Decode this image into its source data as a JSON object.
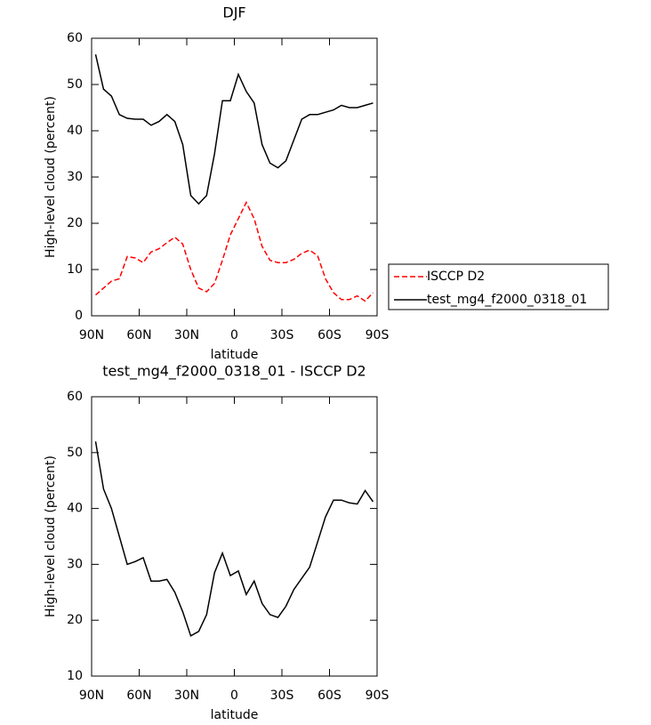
{
  "chart_data": [
    {
      "type": "line",
      "title": "DJF",
      "xlabel": "latitude",
      "ylabel": "High-level cloud (percent)",
      "x": [
        87.5,
        82.5,
        77.5,
        72.5,
        67.5,
        62.5,
        57.5,
        52.5,
        47.5,
        42.5,
        37.5,
        32.5,
        27.5,
        22.5,
        17.5,
        12.5,
        7.5,
        2.5,
        -2.5,
        -7.5,
        -12.5,
        -17.5,
        -22.5,
        -27.5,
        -32.5,
        -37.5,
        -42.5,
        -47.5,
        -52.5,
        -57.5,
        -62.5,
        -67.5,
        -72.5,
        -77.5,
        -82.5,
        -87.5
      ],
      "series": [
        {
          "name": "ISCCP D2",
          "color": "#ff0000",
          "line_style": "dashed",
          "values": [
            4.5,
            6,
            7.5,
            8,
            12.8,
            12.5,
            11.5,
            13.8,
            14.5,
            15.8,
            17,
            15.5,
            10,
            6,
            5.2,
            7,
            12,
            17.5,
            21,
            24.5,
            21,
            15,
            12,
            11.5,
            11.5,
            12.2,
            13.5,
            14.2,
            13,
            8,
            5,
            3.5,
            3.5,
            4.3,
            3.2,
            5
          ]
        },
        {
          "name": "test_mg4_f2000_0318_01",
          "color": "#000000",
          "line_style": "solid",
          "values": [
            56.5,
            49,
            47.5,
            43.5,
            42.7,
            42.5,
            42.5,
            41.2,
            42,
            43.5,
            42,
            37,
            26,
            24.2,
            26,
            35,
            46.5,
            46.5,
            52.2,
            48.5,
            46,
            37,
            33,
            32,
            33.5,
            38,
            42.5,
            43.5,
            43.5,
            44,
            44.5,
            45.5,
            45,
            45,
            45.5,
            46
          ]
        }
      ],
      "xlim": [
        90,
        -90
      ],
      "xticks": [
        {
          "value": 90,
          "label": "90N"
        },
        {
          "value": 60,
          "label": "60N"
        },
        {
          "value": 30,
          "label": "30N"
        },
        0,
        {
          "value": -30,
          "label": "30S"
        },
        {
          "value": -60,
          "label": "60S"
        },
        {
          "value": -90,
          "label": "90S"
        }
      ],
      "ylim": [
        0,
        60
      ],
      "yticks": [
        0,
        10,
        20,
        30,
        40,
        50,
        60
      ],
      "grid": false,
      "legend": "right"
    },
    {
      "type": "line",
      "title": "test_mg4_f2000_0318_01 - ISCCP D2",
      "xlabel": "latitude",
      "ylabel": "High-level cloud (percent)",
      "x": [
        87.5,
        82.5,
        77.5,
        72.5,
        67.5,
        62.5,
        57.5,
        52.5,
        47.5,
        42.5,
        37.5,
        32.5,
        27.5,
        22.5,
        17.5,
        12.5,
        7.5,
        2.5,
        -2.5,
        -7.5,
        -12.5,
        -17.5,
        -22.5,
        -27.5,
        -32.5,
        -37.5,
        -42.5,
        -47.5,
        -52.5,
        -57.5,
        -62.5,
        -67.5,
        -72.5,
        -77.5,
        -82.5,
        -87.5
      ],
      "series": [
        {
          "color": "#000000",
          "line_style": "solid",
          "values": [
            52,
            43.5,
            40,
            35,
            30,
            30.5,
            31.2,
            27,
            27,
            27.3,
            25,
            21.5,
            17.2,
            18,
            21,
            28.5,
            32,
            28,
            28.8,
            24.6,
            27,
            23,
            21,
            20.5,
            22.5,
            25.5,
            27.5,
            29.5,
            34,
            38.5,
            41.5,
            41.5,
            41,
            40.8,
            43.2,
            41.2
          ]
        }
      ],
      "xlim": [
        90,
        -90
      ],
      "xticks": [
        {
          "value": 90,
          "label": "90N"
        },
        {
          "value": 60,
          "label": "60N"
        },
        {
          "value": 30,
          "label": "30N"
        },
        0,
        {
          "value": -30,
          "label": "30S"
        },
        {
          "value": -60,
          "label": "60S"
        },
        {
          "value": -90,
          "label": "90S"
        }
      ],
      "ylim": [
        10,
        60
      ],
      "yticks": [
        10,
        20,
        30,
        40,
        50,
        60
      ],
      "grid": false
    }
  ]
}
